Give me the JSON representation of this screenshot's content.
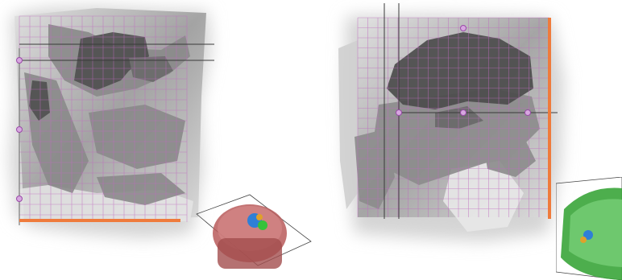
{
  "viewer": {
    "panels": [
      {
        "id": "left",
        "orientation": "sagittal",
        "grid": true,
        "overlay_color": "#c06bc0",
        "slice_bar_color": "#ef7b3c",
        "thumbnail": {
          "view": "3d-volume",
          "tint": "#b85a5a"
        }
      },
      {
        "id": "right",
        "orientation": "coronal",
        "grid": true,
        "overlay_color": "#c06bc0",
        "slice_bar_color": "#ef7b3c",
        "thumbnail": {
          "view": "3d-volume",
          "tint": "#3aa53a"
        }
      }
    ],
    "segments": [
      {
        "name": "dark-region",
        "color": "#5a5a5a"
      },
      {
        "name": "mid-region",
        "color": "#8e8e8e"
      },
      {
        "name": "light-region",
        "color": "#c8c8c8"
      },
      {
        "name": "label-blue",
        "color": "#2f7fd6"
      },
      {
        "name": "label-green",
        "color": "#35c23a"
      },
      {
        "name": "label-orange",
        "color": "#e0a12a"
      }
    ]
  }
}
